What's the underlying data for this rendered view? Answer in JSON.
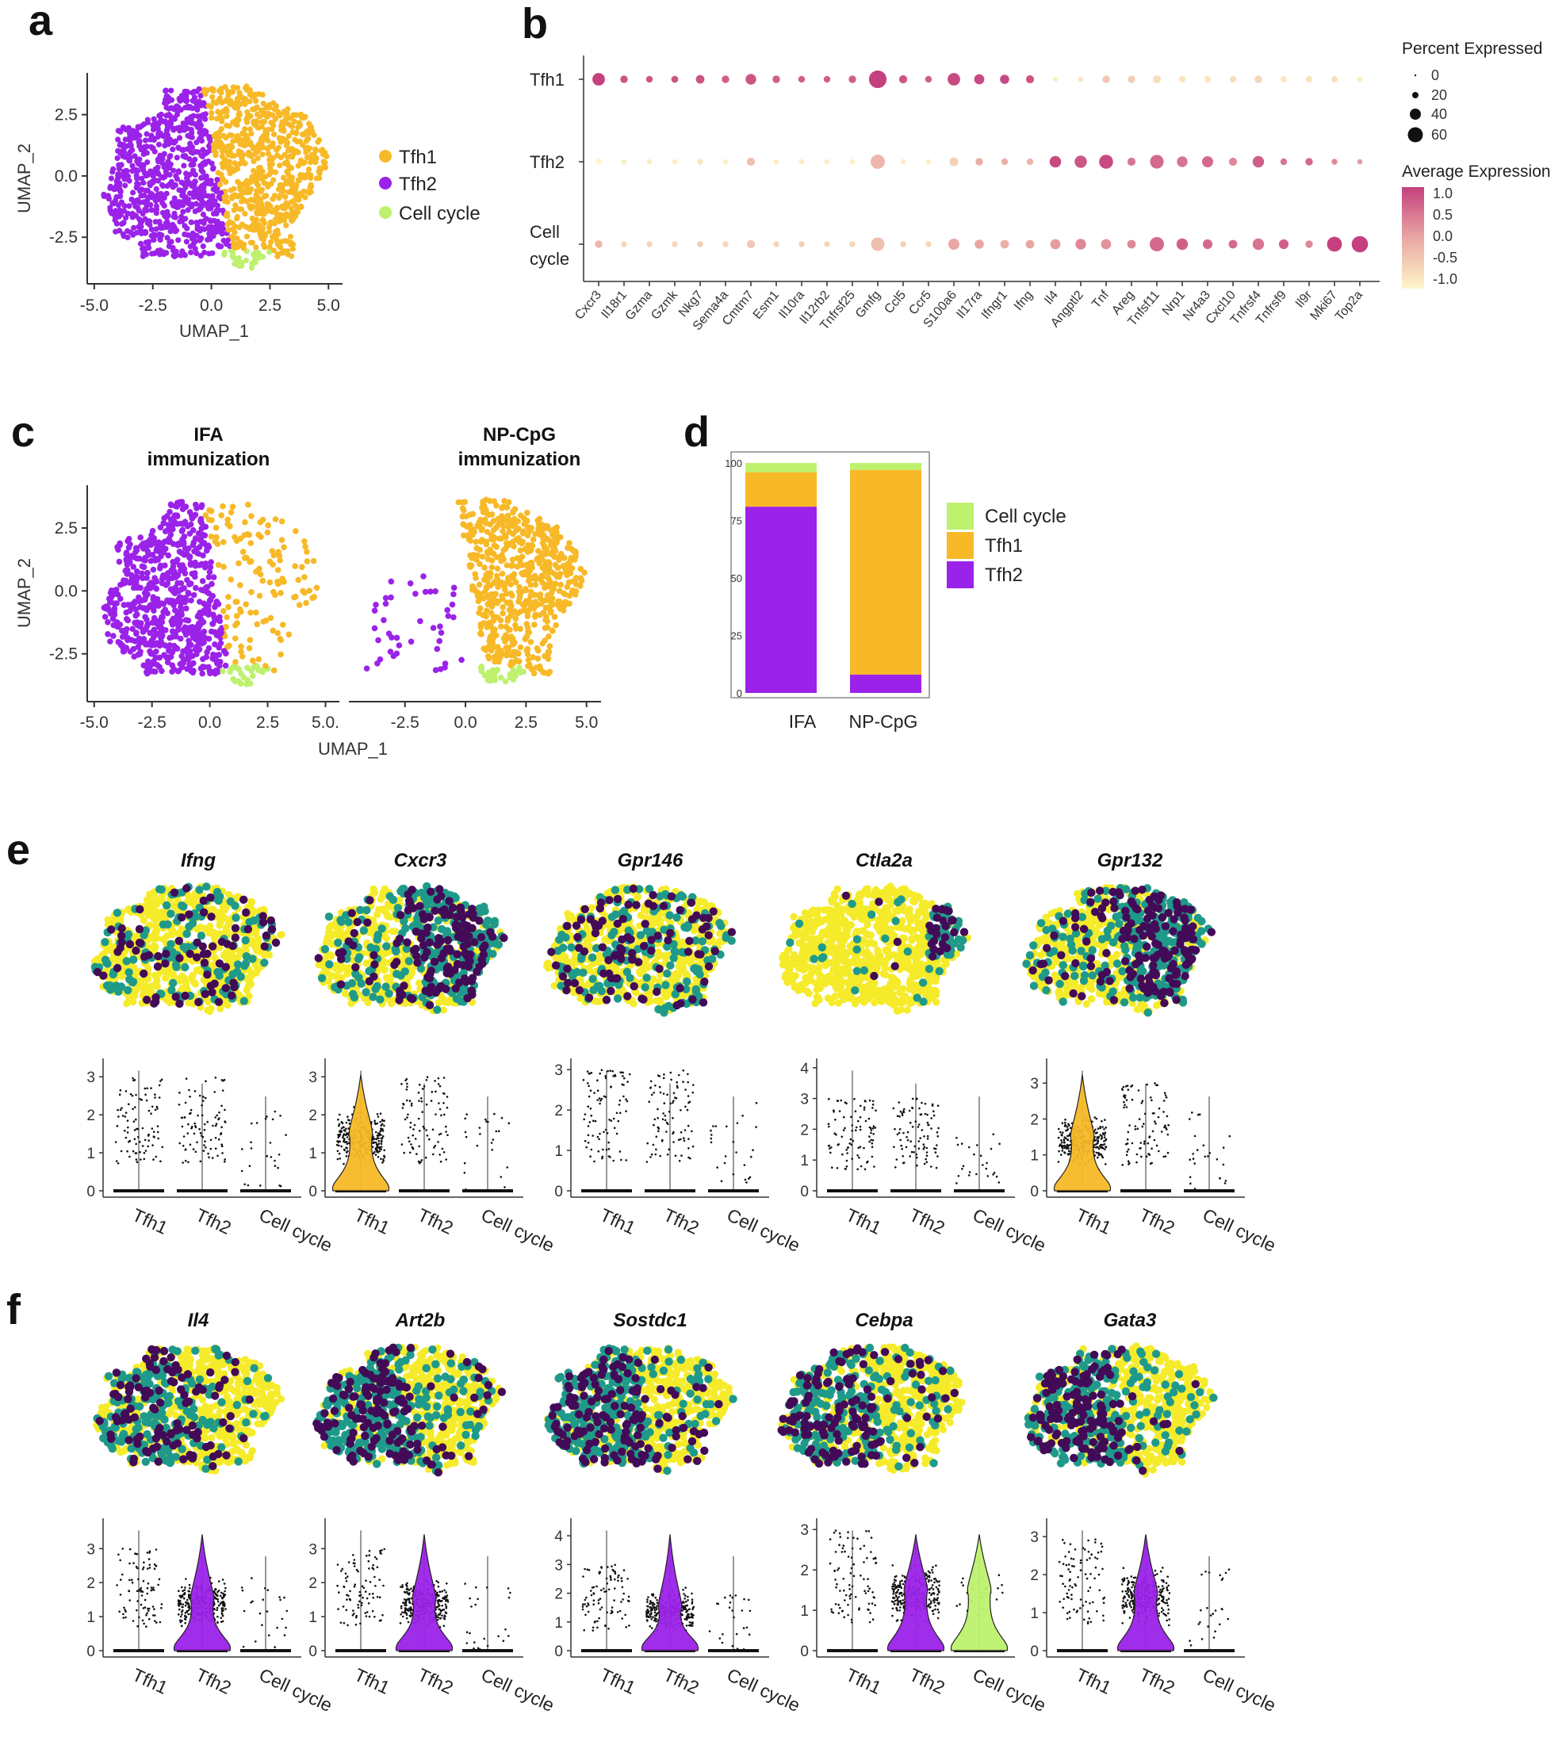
{
  "figure": {
    "panel_letters": [
      "a",
      "b",
      "c",
      "d",
      "e",
      "f"
    ]
  },
  "colors": {
    "tfh1": "#F7B927",
    "tfh2": "#9B22E8",
    "cell_cycle": "#BDF16E",
    "feature_low": "#F5EB2A",
    "feature_mid": "#1F9A8A",
    "feature_high": "#430B57",
    "dot_low": "#FDF3C4",
    "dot_high": "#C4407E"
  },
  "chart_data": [
    {
      "id": "a",
      "type": "scatter",
      "title": "",
      "xlabel": "UMAP_1",
      "ylabel": "UMAP_2",
      "xlim": [
        -5.3,
        5.6
      ],
      "ylim": [
        -4.4,
        4.2
      ],
      "xticks": [
        "-5.0",
        "-2.5",
        "0.0",
        "2.5",
        "5.0"
      ],
      "yticks": [
        "2.5",
        "0.0",
        "-2.5"
      ],
      "legend": [
        "Tfh1",
        "Tfh2",
        "Cell cycle"
      ],
      "series": [
        {
          "name": "Tfh1",
          "region": "right lobe, x 0 to 5, y -2 to 3.8"
        },
        {
          "name": "Tfh2",
          "region": "left lobe, x -4.5 to 0.5, y -3.5 to 3"
        },
        {
          "name": "Cell cycle",
          "region": "bottom, x 0.5 to 2.5, y -4 to -3"
        }
      ]
    },
    {
      "id": "b",
      "type": "dot_plot",
      "rows": [
        "Tfh1",
        "Tfh2",
        "Cell cycle"
      ],
      "row_labels": [
        "Tfh1",
        "Tfh2",
        "Cell",
        "cycle"
      ],
      "genes": [
        "Cxcr3",
        "Il18r1",
        "Gzma",
        "Gzmk",
        "Nkg7",
        "Sema4a",
        "Cmtm7",
        "Esm1",
        "Il10ra",
        "Il12rb2",
        "Tnfrsf25",
        "Gmfg",
        "Ccl5",
        "Ccr5",
        "S100a6",
        "Il17ra",
        "Ifngr1",
        "Ifng",
        "Il4",
        "Angptl2",
        "Tnf",
        "Areg",
        "Tnfsf11",
        "Nrp1",
        "Nr4a3",
        "Cxcl10",
        "Tnfrsf4",
        "Tnfrsf9",
        "Il9r",
        "Mki67",
        "Top2a"
      ],
      "percent_expressed": [
        [
          30,
          8,
          6,
          7,
          12,
          8,
          20,
          8,
          6,
          6,
          8,
          65,
          10,
          6,
          30,
          18,
          14,
          10,
          3,
          3,
          8,
          8,
          10,
          6,
          6,
          6,
          8,
          5,
          6,
          5,
          4
        ],
        [
          5,
          3,
          3,
          3,
          4,
          3,
          10,
          3,
          3,
          3,
          3,
          40,
          3,
          3,
          12,
          8,
          6,
          6,
          25,
          28,
          38,
          10,
          36,
          20,
          22,
          10,
          24,
          6,
          8,
          4,
          3
        ],
        [
          8,
          4,
          4,
          4,
          5,
          4,
          10,
          4,
          4,
          4,
          4,
          35,
          4,
          4,
          22,
          14,
          12,
          12,
          18,
          20,
          18,
          12,
          40,
          24,
          16,
          12,
          24,
          16,
          8,
          45,
          55
        ]
      ],
      "average_expression": [
        [
          1.0,
          0.8,
          0.8,
          0.8,
          0.8,
          0.7,
          0.8,
          0.7,
          0.7,
          0.7,
          0.7,
          1.0,
          0.8,
          0.7,
          0.9,
          0.9,
          0.9,
          0.8,
          -0.9,
          -0.8,
          -0.4,
          -0.5,
          -0.7,
          -0.8,
          -0.8,
          -0.7,
          -0.6,
          -0.8,
          -0.8,
          -0.7,
          -0.9
        ],
        [
          -1.0,
          -0.9,
          -0.9,
          -0.9,
          -0.8,
          -0.9,
          -0.3,
          -0.9,
          -0.9,
          -0.9,
          -0.9,
          -0.2,
          -0.9,
          -0.9,
          -0.5,
          -0.1,
          -0.1,
          -0.2,
          0.9,
          0.8,
          0.9,
          0.5,
          0.6,
          0.5,
          0.6,
          0.3,
          0.7,
          0.5,
          0.6,
          0.3,
          0.1
        ],
        [
          -0.2,
          -0.6,
          -0.6,
          -0.6,
          -0.5,
          -0.6,
          -0.4,
          -0.6,
          -0.5,
          -0.6,
          -0.6,
          -0.3,
          -0.5,
          -0.6,
          0.0,
          0.0,
          -0.1,
          0.0,
          0.1,
          0.3,
          0.2,
          0.3,
          0.6,
          0.7,
          0.6,
          0.6,
          0.5,
          0.7,
          0.3,
          1.0,
          1.0
        ]
      ],
      "size_legend_title": "Percent Expressed",
      "size_legend": [
        "0",
        "20",
        "40",
        "60"
      ],
      "color_legend_title": "Average Expression",
      "color_legend_ticks": [
        "1.0",
        "0.5",
        "0.0",
        "-0.5",
        "-1.0"
      ]
    },
    {
      "id": "c",
      "type": "scatter",
      "xlabel": "UMAP_1",
      "ylabel": "UMAP_2",
      "subplots": [
        {
          "title_line1": "IFA",
          "title_line2": "immunization",
          "xticks": [
            "-5.0",
            "-2.5",
            "0.0",
            "2.5",
            "5.0."
          ]
        },
        {
          "title_line1": "NP-CpG",
          "title_line2": "immunization",
          "xticks": [
            "-2.5",
            "0.0",
            "2.5",
            "5.0"
          ]
        }
      ],
      "yticks": [
        "2.5",
        "0.0",
        "-2.5"
      ],
      "xlim": [
        -5.3,
        5.6
      ],
      "ylim": [
        -4.4,
        4.2
      ]
    },
    {
      "id": "d",
      "type": "bar",
      "stacked": true,
      "categories": [
        "IFA",
        "NP-CpG"
      ],
      "yticks": [
        "100",
        "75",
        "50",
        "25",
        "0"
      ],
      "ylim": [
        0,
        100
      ],
      "series": [
        {
          "name": "Tfh2",
          "values": [
            81,
            8
          ]
        },
        {
          "name": "Tfh1",
          "values": [
            15,
            89
          ]
        },
        {
          "name": "Cell cycle",
          "values": [
            4,
            3
          ]
        }
      ],
      "legend": [
        "Cell cycle",
        "Tfh1",
        "Tfh2"
      ]
    },
    {
      "id": "e",
      "type": "feature_violin",
      "genes": [
        {
          "name": "Ifng",
          "yticks": [
            "3",
            "2",
            "1",
            "0"
          ],
          "ymax": 3.4,
          "violins": [
            0,
            0,
            0
          ],
          "feature_level": 0.2
        },
        {
          "name": "Cxcr3",
          "yticks": [
            "3",
            "2",
            "1",
            "0"
          ],
          "ymax": 3.4,
          "violins": [
            1,
            0,
            0
          ],
          "feature_level": 0.5
        },
        {
          "name": "Gpr146",
          "yticks": [
            "3",
            "2",
            "1",
            "0"
          ],
          "ymax": 3.2,
          "violins": [
            0,
            0,
            0
          ],
          "feature_level": 0.25
        },
        {
          "name": "Ctla2a",
          "yticks": [
            "4",
            "3",
            "2",
            "1",
            "0"
          ],
          "ymax": 4.2,
          "violins": [
            0,
            0,
            0
          ],
          "feature_level": 0.08
        },
        {
          "name": "Gpr132",
          "yticks": [
            "3",
            "2",
            "1",
            "0"
          ],
          "ymax": 3.6,
          "violins": [
            1,
            0,
            0
          ],
          "feature_level": 0.5
        }
      ],
      "categories": [
        "Tfh1",
        "Tfh2",
        "Cell cycle"
      ]
    },
    {
      "id": "f",
      "type": "feature_violin",
      "genes": [
        {
          "name": "Il4",
          "yticks": [
            "3",
            "2",
            "1",
            "0"
          ],
          "ymax": 3.8,
          "violins": [
            0,
            1,
            0
          ],
          "feature_level": 0.35
        },
        {
          "name": "Art2b",
          "yticks": [
            "3",
            "2",
            "1",
            "0"
          ],
          "ymax": 3.8,
          "violins": [
            0,
            1,
            0
          ],
          "feature_level": 0.5
        },
        {
          "name": "Sostdc1",
          "yticks": [
            "4",
            "3",
            "2",
            "1",
            "0"
          ],
          "ymax": 4.5,
          "violins": [
            0,
            1,
            0
          ],
          "feature_level": 0.45
        },
        {
          "name": "Cebpa",
          "yticks": [
            "3",
            "2",
            "1",
            "0"
          ],
          "ymax": 3.2,
          "violins": [
            0,
            1,
            1
          ],
          "feature_level": 0.4
        },
        {
          "name": "Gata3",
          "yticks": [
            "3",
            "2",
            "1",
            "0"
          ],
          "ymax": 3.4,
          "violins": [
            0,
            1,
            0
          ],
          "feature_level": 0.45
        }
      ],
      "categories": [
        "Tfh1",
        "Tfh2",
        "Cell cycle"
      ]
    }
  ]
}
